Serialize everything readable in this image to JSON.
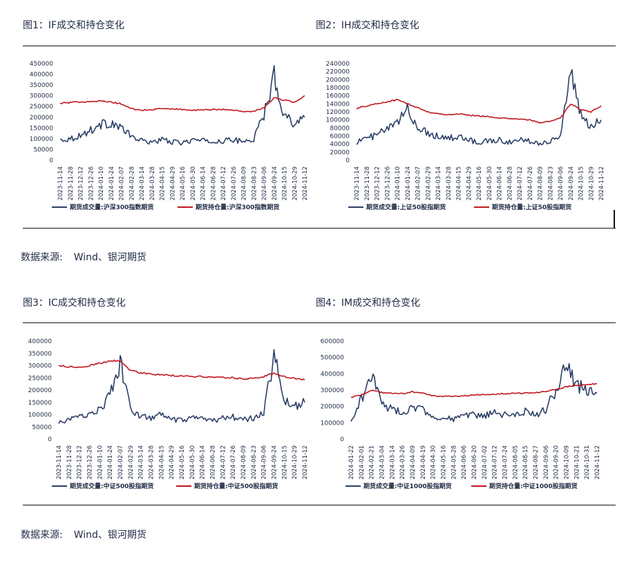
{
  "figures": [
    {
      "title": "图1：IF成交和持仓变化"
    },
    {
      "title": "图2：IH成交和持仓变化"
    },
    {
      "title": "图3：IC成交和持仓变化"
    },
    {
      "title": "图4：IM成交和持仓变化"
    }
  ],
  "sources": [
    {
      "label": "数据来源:",
      "value": "Wind、银河期货"
    },
    {
      "label": "数据来源:",
      "value": "Wind、银河期货"
    }
  ],
  "colors": {
    "volume": "#2b3f66",
    "open_interest": "#c0171f",
    "text": "#1f2a44"
  },
  "chart_data": [
    {
      "type": "line",
      "title": "",
      "xlabel": "",
      "ylabel": "",
      "x": [
        "2023-11-14",
        "2023-11-28",
        "2023-12-12",
        "2023-12-26",
        "2024-01-10",
        "2024-01-24",
        "2024-02-07",
        "2024-02-28",
        "2024-03-14",
        "2024-03-28",
        "2024-04-15",
        "2024-04-29",
        "2024-05-16",
        "2024-05-30",
        "2024-06-14",
        "2024-06-28",
        "2024-07-12",
        "2024-07-26",
        "2024-08-09",
        "2024-08-23",
        "2024-09-06",
        "2024-09-24",
        "2024-10-15",
        "2024-10-29",
        "2024-11-12"
      ],
      "yticks": [
        0,
        50000,
        100000,
        150000,
        200000,
        250000,
        300000,
        350000,
        400000,
        450000
      ],
      "ylim": [
        0,
        450000
      ],
      "series": [
        {
          "name": "期货成交量:沪深300指数期货",
          "values": [
            95000,
            100000,
            115000,
            140000,
            165000,
            175000,
            150000,
            110000,
            90000,
            85000,
            95000,
            85000,
            80000,
            95000,
            90000,
            85000,
            90000,
            95000,
            85000,
            100000,
            210000,
            395000,
            210000,
            175000,
            200000
          ]
        },
        {
          "name": "期货持仓量:沪深300指数期货",
          "values": [
            265000,
            268000,
            272000,
            274000,
            275000,
            270000,
            262000,
            240000,
            232000,
            235000,
            240000,
            240000,
            236000,
            232000,
            234000,
            236000,
            236000,
            233000,
            225000,
            228000,
            245000,
            290000,
            280000,
            270000,
            300000
          ]
        }
      ],
      "legend": "bottom"
    },
    {
      "type": "line",
      "title": "",
      "xlabel": "",
      "ylabel": "",
      "x": [
        "2023-11-14",
        "2023-11-28",
        "2023-12-12",
        "2023-12-26",
        "2024-01-10",
        "2024-01-24",
        "2024-02-07",
        "2024-02-29",
        "2024-03-14",
        "2024-03-28",
        "2024-04-15",
        "2024-04-29",
        "2024-05-16",
        "2024-05-30",
        "2024-06-14",
        "2024-06-28",
        "2024-07-12",
        "2024-07-26",
        "2024-08-09",
        "2024-08-23",
        "2024-09-06",
        "2024-09-24",
        "2024-10-15",
        "2024-10-29",
        "2024-11-12"
      ],
      "yticks": [
        0,
        20000,
        40000,
        60000,
        80000,
        100000,
        120000,
        140000,
        160000,
        180000,
        200000,
        220000,
        240000
      ],
      "ylim": [
        0,
        240000
      ],
      "series": [
        {
          "name": "期货成交量:上证50股指期货",
          "values": [
            45000,
            55000,
            62000,
            78000,
            90000,
            130000,
            80000,
            68000,
            60000,
            55000,
            58000,
            50000,
            45000,
            48000,
            50000,
            45000,
            50000,
            48000,
            42000,
            48000,
            60000,
            225000,
            110000,
            80000,
            100000
          ]
        },
        {
          "name": "期货持仓量:上证50股指期货",
          "values": [
            128000,
            135000,
            140000,
            145000,
            150000,
            140000,
            130000,
            120000,
            115000,
            113000,
            115000,
            112000,
            110000,
            108000,
            105000,
            103000,
            102000,
            100000,
            93000,
            96000,
            105000,
            140000,
            125000,
            120000,
            135000
          ]
        }
      ],
      "legend": "bottom"
    },
    {
      "type": "line",
      "title": "",
      "xlabel": "",
      "ylabel": "",
      "x": [
        "2023-11-14",
        "2023-11-28",
        "2023-12-12",
        "2023-12-26",
        "2024-01-10",
        "2024-01-24",
        "2024-02-07",
        "2024-02-29",
        "2024-03-14",
        "2024-03-28",
        "2024-04-15",
        "2024-04-29",
        "2024-05-16",
        "2024-05-30",
        "2024-06-14",
        "2024-06-28",
        "2024-07-12",
        "2024-07-26",
        "2024-08-09",
        "2024-08-23",
        "2024-09-06",
        "2024-09-24",
        "2024-10-15",
        "2024-10-29",
        "2024-11-12"
      ],
      "yticks": [
        0,
        50000,
        100000,
        150000,
        200000,
        250000,
        300000,
        350000,
        400000
      ],
      "ylim": [
        0,
        400000
      ],
      "series": [
        {
          "name": "期货成交量:中证500股指期货",
          "values": [
            65000,
            80000,
            90000,
            105000,
            120000,
            180000,
            310000,
            120000,
            95000,
            85000,
            100000,
            80000,
            75000,
            85000,
            80000,
            75000,
            85000,
            90000,
            80000,
            85000,
            110000,
            340000,
            160000,
            135000,
            150000
          ]
        },
        {
          "name": "期货持仓量:中证500股指期货",
          "values": [
            300000,
            295000,
            292000,
            300000,
            310000,
            320000,
            320000,
            280000,
            270000,
            265000,
            262000,
            260000,
            258000,
            256000,
            255000,
            252000,
            252000,
            250000,
            245000,
            248000,
            255000,
            270000,
            255000,
            248000,
            242000
          ]
        }
      ],
      "legend": "bottom"
    },
    {
      "type": "line",
      "title": "",
      "xlabel": "",
      "ylabel": "",
      "x": [
        "2024-01-22",
        "2024-02-01",
        "2024-02-21",
        "2024-03-04",
        "2024-03-14",
        "2024-03-26",
        "2024-04-09",
        "2024-04-19",
        "2024-04-30",
        "2024-05-16",
        "2024-05-28",
        "2024-06-06",
        "2024-06-20",
        "2024-07-02",
        "2024-07-12",
        "2024-07-24",
        "2024-08-05",
        "2024-08-15",
        "2024-08-27",
        "2024-09-06",
        "2024-09-20",
        "2024-10-09",
        "2024-10-21",
        "2024-10-31",
        "2024-11-12"
      ],
      "yticks": [
        0,
        100000,
        200000,
        300000,
        400000,
        500000,
        600000
      ],
      "ylim": [
        0,
        600000
      ],
      "series": [
        {
          "name": "期货成交量:中证1000股指期货",
          "values": [
            100000,
            250000,
            390000,
            220000,
            180000,
            160000,
            200000,
            180000,
            140000,
            130000,
            120000,
            140000,
            150000,
            140000,
            160000,
            150000,
            140000,
            170000,
            150000,
            180000,
            300000,
            480000,
            330000,
            300000,
            280000
          ]
        },
        {
          "name": "期货持仓量:中证1000股指期货",
          "values": [
            255000,
            270000,
            300000,
            285000,
            280000,
            278000,
            290000,
            280000,
            265000,
            262000,
            262000,
            265000,
            270000,
            272000,
            275000,
            278000,
            280000,
            282000,
            285000,
            290000,
            305000,
            320000,
            330000,
            335000,
            340000
          ]
        }
      ],
      "legend": "bottom"
    }
  ]
}
